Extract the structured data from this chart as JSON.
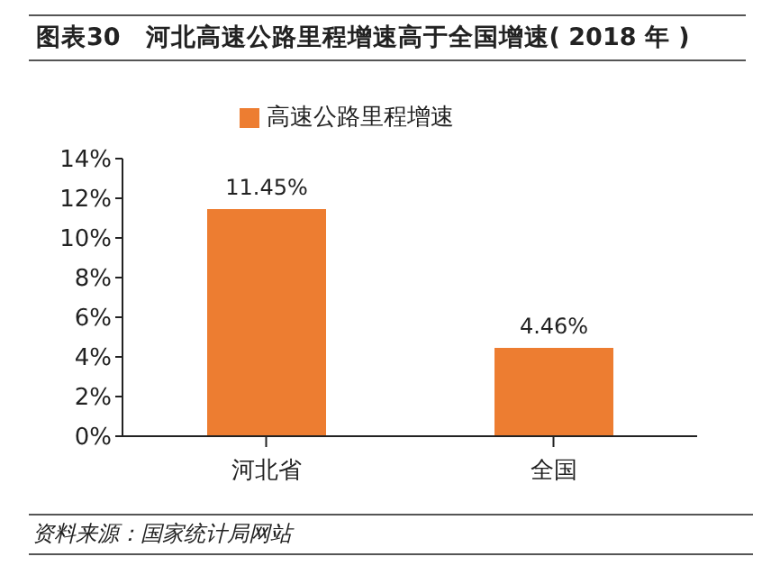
{
  "chart_data": {
    "type": "bar",
    "title": "图表30　河北高速公路里程增速高于全国增速( 2018 年 )",
    "categories": [
      "河北省",
      "全国"
    ],
    "series": [
      {
        "name": "高速公路里程增速",
        "color": "#ed7d31",
        "values": [
          11.45,
          4.46
        ],
        "value_labels": [
          "11.45%",
          "4.46%"
        ]
      }
    ],
    "ylim": [
      0,
      14
    ],
    "yticks": [
      {
        "value": 0,
        "label": "0%"
      },
      {
        "value": 2,
        "label": "2%"
      },
      {
        "value": 4,
        "label": "4%"
      },
      {
        "value": 6,
        "label": "6%"
      },
      {
        "value": 8,
        "label": "8%"
      },
      {
        "value": 10,
        "label": "10%"
      },
      {
        "value": 12,
        "label": "12%"
      },
      {
        "value": 14,
        "label": "14%"
      }
    ],
    "grid": false,
    "legend": "top",
    "annotations": [
      "资料来源：国家统计局网站"
    ]
  }
}
